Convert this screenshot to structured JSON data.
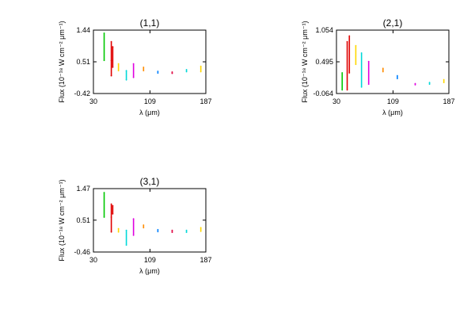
{
  "chart_data": [
    {
      "type": "scatter",
      "title": "(1,1)",
      "xlabel": "λ (μm)",
      "ylabel": "Flux (10⁻¹⁸ W cm⁻² μm⁻¹)",
      "xlim": [
        30,
        187
      ],
      "ylim": [
        -0.42,
        1.44
      ],
      "xticks": [
        "30",
        "109",
        "187"
      ],
      "yticks": [
        "-0.42",
        "0.51",
        "1.44"
      ],
      "grid": false,
      "series": [
        {
          "color": "#00c800",
          "points": [
            [
              45,
              0.55
            ],
            [
              45,
              1.35
            ]
          ]
        },
        {
          "color": "#e00000",
          "points": [
            [
              55,
              0.1
            ],
            [
              55,
              0.55
            ],
            [
              55,
              1.1
            ]
          ]
        },
        {
          "color": "#e00000",
          "points": [
            [
              57,
              0.35
            ],
            [
              57,
              0.95
            ]
          ]
        },
        {
          "color": "#ffd700",
          "points": [
            [
              65,
              0.25
            ],
            [
              65,
              0.45
            ]
          ]
        },
        {
          "color": "#00d8d8",
          "points": [
            [
              76,
              -0.02
            ],
            [
              76,
              0.25
            ]
          ]
        },
        {
          "color": "#e000e0",
          "points": [
            [
              86,
              0.05
            ],
            [
              86,
              0.45
            ]
          ]
        },
        {
          "color": "#ff8c00",
          "points": [
            [
              100,
              0.25
            ],
            [
              100,
              0.35
            ]
          ]
        },
        {
          "color": "#0080ff",
          "points": [
            [
              120,
              0.18
            ],
            [
              120,
              0.23
            ]
          ]
        },
        {
          "color": "#e00040",
          "points": [
            [
              140,
              0.17
            ],
            [
              140,
              0.21
            ]
          ]
        },
        {
          "color": "#00d8d8",
          "points": [
            [
              160,
              0.22
            ],
            [
              160,
              0.28
            ]
          ]
        },
        {
          "color": "#ffd700",
          "points": [
            [
              180,
              0.22
            ],
            [
              180,
              0.38
            ]
          ]
        }
      ]
    },
    {
      "type": "scatter",
      "title": "(2,1)",
      "xlabel": "λ (μm)",
      "ylabel": "Flux (10⁻¹⁸ W cm⁻² μm⁻¹)",
      "xlim": [
        30,
        187
      ],
      "ylim": [
        -0.064,
        1.054
      ],
      "xticks": [
        "30",
        "109",
        "187"
      ],
      "yticks": [
        "-0.064",
        "0.495",
        "1.054"
      ],
      "grid": false,
      "series": [
        {
          "color": "#00c800",
          "points": [
            [
              38,
              0.0
            ],
            [
              38,
              0.3
            ]
          ]
        },
        {
          "color": "#e00000",
          "points": [
            [
              45,
              0.0
            ],
            [
              45,
              0.85
            ]
          ]
        },
        {
          "color": "#e00000",
          "points": [
            [
              48,
              0.3
            ],
            [
              48,
              0.95
            ]
          ]
        },
        {
          "color": "#ffd700",
          "points": [
            [
              57,
              0.45
            ],
            [
              57,
              0.78
            ]
          ]
        },
        {
          "color": "#00d8d8",
          "points": [
            [
              65,
              0.05
            ],
            [
              65,
              0.65
            ]
          ]
        },
        {
          "color": "#e000e0",
          "points": [
            [
              75,
              0.1
            ],
            [
              75,
              0.5
            ]
          ]
        },
        {
          "color": "#ff8c00",
          "points": [
            [
              95,
              0.32
            ],
            [
              95,
              0.38
            ]
          ]
        },
        {
          "color": "#0080ff",
          "points": [
            [
              115,
              0.2
            ],
            [
              115,
              0.25
            ]
          ]
        },
        {
          "color": "#e000e0",
          "points": [
            [
              140,
              0.09
            ],
            [
              140,
              0.11
            ]
          ]
        },
        {
          "color": "#00d8d8",
          "points": [
            [
              160,
              0.1
            ],
            [
              160,
              0.13
            ]
          ]
        },
        {
          "color": "#ffd700",
          "points": [
            [
              180,
              0.13
            ],
            [
              180,
              0.18
            ]
          ]
        }
      ]
    },
    {
      "type": "scatter",
      "title": "(3,1)",
      "xlabel": "λ (μm)",
      "ylabel": "Flux (10⁻¹⁸ W cm⁻² μm⁻¹)",
      "xlim": [
        30,
        187
      ],
      "ylim": [
        -0.46,
        1.47
      ],
      "xticks": [
        "30",
        "109",
        "187"
      ],
      "yticks": [
        "-0.46",
        "0.51",
        "1.47"
      ],
      "grid": false,
      "series": [
        {
          "color": "#00c800",
          "points": [
            [
              45,
              0.6
            ],
            [
              45,
              1.35
            ]
          ]
        },
        {
          "color": "#e00000",
          "points": [
            [
              55,
              0.15
            ],
            [
              55,
              0.6
            ],
            [
              55,
              1.0
            ]
          ]
        },
        {
          "color": "#e00000",
          "points": [
            [
              57,
              0.7
            ],
            [
              57,
              0.95
            ]
          ]
        },
        {
          "color": "#ffd700",
          "points": [
            [
              65,
              0.15
            ],
            [
              65,
              0.25
            ]
          ]
        },
        {
          "color": "#00d8d8",
          "points": [
            [
              76,
              -0.25
            ],
            [
              76,
              0.2
            ]
          ]
        },
        {
          "color": "#e000e0",
          "points": [
            [
              86,
              0.05
            ],
            [
              86,
              0.55
            ]
          ]
        },
        {
          "color": "#ff8c00",
          "points": [
            [
              100,
              0.28
            ],
            [
              100,
              0.36
            ]
          ]
        },
        {
          "color": "#0080ff",
          "points": [
            [
              120,
              0.16
            ],
            [
              120,
              0.22
            ]
          ]
        },
        {
          "color": "#e00040",
          "points": [
            [
              140,
              0.14
            ],
            [
              140,
              0.2
            ]
          ]
        },
        {
          "color": "#00d8d8",
          "points": [
            [
              160,
              0.14
            ],
            [
              160,
              0.2
            ]
          ]
        },
        {
          "color": "#ffd700",
          "points": [
            [
              180,
              0.17
            ],
            [
              180,
              0.28
            ]
          ]
        }
      ]
    }
  ]
}
